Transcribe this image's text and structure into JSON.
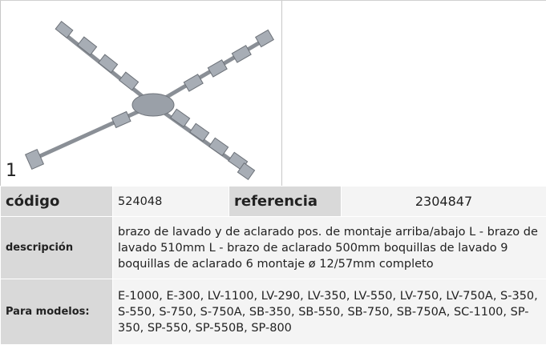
{
  "figure": {
    "label": "1"
  },
  "table": {
    "rows": [
      [
        "código",
        "524048",
        "referencia",
        "2304847"
      ],
      [
        "descripción",
        "brazo de lavado y de aclarado  pos. de montaje arriba/abajo L - brazo de lavado 510mm L - brazo de aclarado 500mm boquillas de lavado 9 boquillas de aclarado 6 montaje ø 12/57mm completo"
      ],
      [
        "Para modelos:",
        "E-1000, E-300, LV-1100, LV-290, LV-350, LV-550, LV-750, LV-750A, S-350, S-550, S-750, S-750A, SB-350, SB-550, SB-750, SB-750A, SC-1100, SP-350, SP-550, SP-550B, SP-800"
      ]
    ]
  }
}
